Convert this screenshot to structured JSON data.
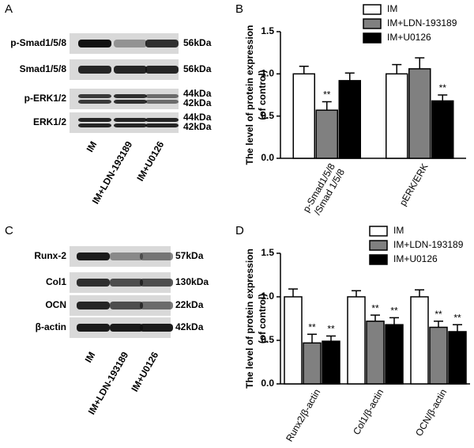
{
  "panel_labels": [
    "A",
    "B",
    "C",
    "D"
  ],
  "blots": [
    {
      "rows": [
        {
          "protein": "p-Smad1/5/8",
          "sizes": [
            "56kDa"
          ]
        },
        {
          "protein": "Smad1/5/8",
          "sizes": [
            "56kDa"
          ]
        },
        {
          "protein": "p-ERK1/2",
          "sizes": [
            "44kDa",
            "42kDa"
          ]
        },
        {
          "protein": "ERK1/2",
          "sizes": [
            "44kDa",
            "42kDa"
          ]
        }
      ],
      "lanes": [
        "IM",
        "IM+LDN-193189",
        "IM+U0126"
      ]
    },
    {
      "rows": [
        {
          "protein": "Runx-2",
          "sizes": [
            "57kDa"
          ]
        },
        {
          "protein": "Col1",
          "sizes": [
            "130kDa"
          ]
        },
        {
          "protein": "OCN",
          "sizes": [
            "22kDa"
          ]
        },
        {
          "protein": "β-actin",
          "sizes": [
            "42kDa"
          ]
        }
      ],
      "lanes": [
        "IM",
        "IM+LDN-193189",
        "IM+U0126"
      ]
    }
  ],
  "chart_data": [
    {
      "type": "bar",
      "ylabel": [
        "The level of protein expression",
        "(of control)"
      ],
      "categories": [
        "p-Smad1/5/8\n/Smad 1/5/8",
        "pERK/ERK"
      ],
      "series": [
        {
          "name": "IM",
          "color": "#ffffff",
          "values": [
            1.0,
            1.0
          ],
          "errors": [
            0.09,
            0.11
          ],
          "stars": [
            null,
            null
          ]
        },
        {
          "name": "IM+LDN-193189",
          "color": "#808080",
          "values": [
            0.57,
            1.06
          ],
          "errors": [
            0.1,
            0.13
          ],
          "stars": [
            "**",
            null
          ]
        },
        {
          "name": "IM+U0126",
          "color": "#000000",
          "values": [
            0.92,
            0.68
          ],
          "errors": [
            0.09,
            0.07
          ],
          "stars": [
            null,
            "**"
          ]
        }
      ],
      "ylim": [
        0,
        1.5
      ],
      "yticks": [
        {
          "value": 0,
          "label": "0.0"
        },
        {
          "value": 0.5,
          "label": "0.5"
        },
        {
          "value": 1,
          "label": "1.0"
        },
        {
          "value": 1.5,
          "label": "1.5"
        }
      ]
    },
    {
      "type": "bar",
      "ylabel": [
        "The level of protein expression",
        "(of control)"
      ],
      "categories": [
        "Runx2/β-actin",
        "Col1/β-actin",
        "OCN/β-actin"
      ],
      "series": [
        {
          "name": "IM",
          "color": "#ffffff",
          "values": [
            1.0,
            1.0,
            1.0
          ],
          "errors": [
            0.09,
            0.07,
            0.08
          ],
          "stars": [
            null,
            null,
            null
          ]
        },
        {
          "name": "IM+LDN-193189",
          "color": "#808080",
          "values": [
            0.47,
            0.72,
            0.65
          ],
          "errors": [
            0.1,
            0.07,
            0.07
          ],
          "stars": [
            "**",
            "**",
            "**"
          ]
        },
        {
          "name": "IM+U0126",
          "color": "#000000",
          "values": [
            0.49,
            0.68,
            0.6
          ],
          "errors": [
            0.06,
            0.08,
            0.08
          ],
          "stars": [
            "**",
            "**",
            "**"
          ]
        }
      ],
      "ylim": [
        0,
        1.5
      ],
      "yticks": [
        {
          "value": 0,
          "label": "0.0"
        },
        {
          "value": 0.5,
          "label": "0.5"
        },
        {
          "value": 1,
          "label": "1.0"
        },
        {
          "value": 1.5,
          "label": "1.5"
        }
      ]
    }
  ]
}
